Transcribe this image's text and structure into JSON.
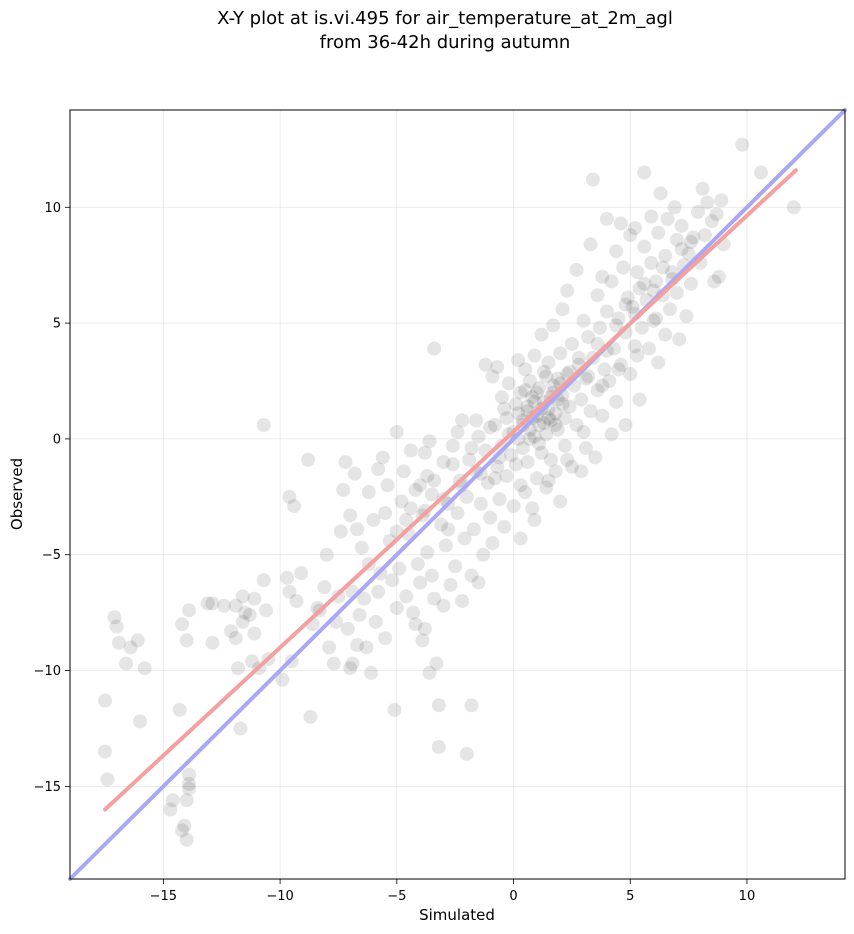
{
  "chart_data": {
    "type": "scatter",
    "title": "X-Y plot at is.vi.495 for air_temperature_at_2m_agl",
    "subtitle": "from 36-42h during autumn",
    "xlabel": "Simulated",
    "ylabel": "Observed",
    "xlim": [
      -19.0,
      14.2
    ],
    "ylim": [
      -19.0,
      14.2
    ],
    "xticks": [
      -15,
      -10,
      -5,
      0,
      5,
      10
    ],
    "yticks": [
      -15,
      -10,
      -5,
      0,
      5,
      10
    ],
    "xtick_labels": [
      "−15",
      "−10",
      "−5",
      "0",
      "5",
      "10"
    ],
    "ytick_labels": [
      "−15",
      "−10",
      "−5",
      "0",
      "5",
      "10"
    ],
    "grid": true,
    "colors": {
      "points": "#000000",
      "fit_line": "#f4a0a0",
      "identity_line": "#a8a8f4"
    },
    "identity_line": {
      "x": [
        -19.0,
        14.2
      ],
      "y": [
        -19.0,
        14.2
      ]
    },
    "fit_line": {
      "x": [
        -17.5,
        12.1
      ],
      "y": [
        -16.0,
        11.6
      ]
    },
    "points": [
      [
        -17.5,
        -11.3
      ],
      [
        -17.5,
        -13.5
      ],
      [
        -17.4,
        -14.7
      ],
      [
        -17.1,
        -7.7
      ],
      [
        -17.0,
        -8.1
      ],
      [
        -16.9,
        -8.8
      ],
      [
        -16.6,
        -9.7
      ],
      [
        -16.4,
        -9.0
      ],
      [
        -16.1,
        -8.7
      ],
      [
        -16.0,
        -12.2
      ],
      [
        -15.8,
        -9.9
      ],
      [
        -14.7,
        -16.0
      ],
      [
        -14.6,
        -15.6
      ],
      [
        -14.3,
        -11.7
      ],
      [
        -14.2,
        -16.9
      ],
      [
        -14.2,
        -8.0
      ],
      [
        -14.1,
        -16.7
      ],
      [
        -14.0,
        -17.3
      ],
      [
        -14.0,
        -15.6
      ],
      [
        -13.9,
        -15.1
      ],
      [
        -13.9,
        -14.9
      ],
      [
        -13.9,
        -14.5
      ],
      [
        -14.0,
        -8.7
      ],
      [
        -13.9,
        -7.4
      ],
      [
        -13.1,
        -7.1
      ],
      [
        -12.9,
        -7.1
      ],
      [
        -12.9,
        -8.8
      ],
      [
        -12.4,
        -7.2
      ],
      [
        -12.1,
        -8.3
      ],
      [
        -11.9,
        -8.6
      ],
      [
        -11.9,
        -7.2
      ],
      [
        -11.8,
        -9.9
      ],
      [
        -11.7,
        -12.5
      ],
      [
        -11.6,
        -6.8
      ],
      [
        -11.6,
        -7.9
      ],
      [
        -11.5,
        -7.5
      ],
      [
        -11.3,
        -7.6
      ],
      [
        -11.2,
        -9.6
      ],
      [
        -11.1,
        -8.4
      ],
      [
        -11.1,
        -6.9
      ],
      [
        -10.9,
        -9.9
      ],
      [
        -10.7,
        -6.1
      ],
      [
        -10.6,
        -7.4
      ],
      [
        -10.5,
        -9.5
      ],
      [
        -10.7,
        0.6
      ],
      [
        -9.9,
        -10.4
      ],
      [
        -9.7,
        -6.0
      ],
      [
        -9.6,
        -6.6
      ],
      [
        -9.5,
        -9.6
      ],
      [
        -9.6,
        -2.5
      ],
      [
        -9.4,
        -2.9
      ],
      [
        -9.3,
        -7.0
      ],
      [
        -9.1,
        -5.8
      ],
      [
        -8.8,
        -0.9
      ],
      [
        -8.7,
        -12.0
      ],
      [
        -8.6,
        -8.0
      ],
      [
        -8.4,
        -7.3
      ],
      [
        -8.3,
        -7.4
      ],
      [
        -8.1,
        -6.4
      ],
      [
        -8.0,
        -5.0
      ],
      [
        -7.9,
        -9.0
      ],
      [
        -7.7,
        -9.7
      ],
      [
        -7.6,
        -7.9
      ],
      [
        -7.5,
        -6.8
      ],
      [
        -7.4,
        -4.0
      ],
      [
        -7.3,
        -2.2
      ],
      [
        -7.2,
        -1.0
      ],
      [
        -7.1,
        -8.2
      ],
      [
        -7.0,
        -9.9
      ],
      [
        -7.0,
        -3.3
      ],
      [
        -6.9,
        -9.7
      ],
      [
        -6.9,
        -6.6
      ],
      [
        -6.8,
        -1.5
      ],
      [
        -6.7,
        -8.9
      ],
      [
        -6.7,
        -3.9
      ],
      [
        -6.6,
        -7.6
      ],
      [
        -6.5,
        -4.7
      ],
      [
        -6.4,
        -6.9
      ],
      [
        -6.3,
        -9.0
      ],
      [
        -6.2,
        -5.4
      ],
      [
        -6.2,
        -2.3
      ],
      [
        -6.1,
        -10.1
      ],
      [
        -6.0,
        -3.5
      ],
      [
        -5.9,
        -7.9
      ],
      [
        -5.8,
        -6.6
      ],
      [
        -5.8,
        -1.3
      ],
      [
        -5.7,
        -5.8
      ],
      [
        -5.6,
        -0.8
      ],
      [
        -5.5,
        -8.6
      ],
      [
        -5.5,
        -3.2
      ],
      [
        -5.4,
        -2.0
      ],
      [
        -5.3,
        -4.4
      ],
      [
        -5.2,
        -6.1
      ],
      [
        -5.1,
        -11.7
      ],
      [
        -5.0,
        0.3
      ],
      [
        -5.0,
        -7.3
      ],
      [
        -4.9,
        -5.6
      ],
      [
        -4.8,
        -2.7
      ],
      [
        -4.7,
        -1.4
      ],
      [
        -4.6,
        -6.8
      ],
      [
        -4.5,
        -4.1
      ],
      [
        -4.4,
        -3.0
      ],
      [
        -4.4,
        -0.5
      ],
      [
        -4.3,
        -7.5
      ],
      [
        -4.2,
        -8.0
      ],
      [
        -4.1,
        -5.4
      ],
      [
        -4.0,
        -2.0
      ],
      [
        -4.0,
        -6.2
      ],
      [
        -3.9,
        -8.7
      ],
      [
        -3.9,
        -3.3
      ],
      [
        -3.8,
        -8.2
      ],
      [
        -3.8,
        -0.6
      ],
      [
        -3.7,
        -1.6
      ],
      [
        -3.7,
        -4.9
      ],
      [
        -3.6,
        -10.1
      ],
      [
        -3.5,
        -2.4
      ],
      [
        -3.5,
        -5.9
      ],
      [
        -3.4,
        3.9
      ],
      [
        -3.4,
        -6.9
      ],
      [
        -3.3,
        -9.7
      ],
      [
        -3.2,
        -11.5
      ],
      [
        -3.2,
        -13.3
      ],
      [
        -3.1,
        -3.7
      ],
      [
        -3.0,
        -7.2
      ],
      [
        -3.0,
        -1.0
      ],
      [
        -2.9,
        -4.6
      ],
      [
        -2.8,
        -2.8
      ],
      [
        -2.7,
        -6.3
      ],
      [
        -2.6,
        -0.3
      ],
      [
        -2.5,
        -5.5
      ],
      [
        -2.4,
        -3.2
      ],
      [
        -2.3,
        -1.8
      ],
      [
        -2.2,
        -7.0
      ],
      [
        -2.2,
        0.8
      ],
      [
        -2.1,
        -4.3
      ],
      [
        -2.0,
        -13.6
      ],
      [
        -2.0,
        -2.5
      ],
      [
        -1.9,
        -0.9
      ],
      [
        -1.8,
        -5.9
      ],
      [
        -1.8,
        -11.5
      ],
      [
        -1.7,
        -3.9
      ],
      [
        -1.6,
        -1.4
      ],
      [
        -1.5,
        0.1
      ],
      [
        -1.5,
        -6.2
      ],
      [
        -1.4,
        -2.8
      ],
      [
        -1.3,
        -5.0
      ],
      [
        -1.2,
        -0.5
      ],
      [
        -1.2,
        3.2
      ],
      [
        -1.1,
        -1.9
      ],
      [
        -1.0,
        -3.4
      ],
      [
        -0.9,
        2.7
      ],
      [
        -0.9,
        -4.5
      ],
      [
        -0.8,
        0.6
      ],
      [
        -0.7,
        -1.2
      ],
      [
        -0.7,
        3.1
      ],
      [
        -0.6,
        -2.6
      ],
      [
        -0.5,
        -0.3
      ],
      [
        -0.5,
        1.8
      ],
      [
        -0.4,
        -3.8
      ],
      [
        -0.3,
        0.9
      ],
      [
        -0.3,
        -1.6
      ],
      [
        -0.2,
        2.4
      ],
      [
        -0.1,
        -0.7
      ],
      [
        0.0,
        0.3
      ],
      [
        0.0,
        -2.9
      ],
      [
        0.1,
        1.5
      ],
      [
        0.1,
        -1.1
      ],
      [
        0.2,
        3.4
      ],
      [
        0.2,
        0.0
      ],
      [
        0.3,
        -4.3
      ],
      [
        0.3,
        2.0
      ],
      [
        0.4,
        -0.4
      ],
      [
        0.4,
        0.8
      ],
      [
        0.5,
        -2.3
      ],
      [
        0.5,
        3.0
      ],
      [
        0.6,
        1.2
      ],
      [
        0.6,
        -1.0
      ],
      [
        0.7,
        0.4
      ],
      [
        0.7,
        2.5
      ],
      [
        0.8,
        -3.0
      ],
      [
        0.8,
        1.8
      ],
      [
        0.9,
        0.1
      ],
      [
        0.9,
        3.6
      ],
      [
        1.0,
        1.0
      ],
      [
        1.0,
        -1.7
      ],
      [
        1.1,
        2.2
      ],
      [
        1.1,
        0.6
      ],
      [
        1.2,
        -0.6
      ],
      [
        1.2,
        4.5
      ],
      [
        1.3,
        1.6
      ],
      [
        1.3,
        2.9
      ],
      [
        1.4,
        0.2
      ],
      [
        1.4,
        -2.1
      ],
      [
        1.5,
        1.3
      ],
      [
        1.5,
        3.3
      ],
      [
        1.6,
        0.8
      ],
      [
        1.6,
        -0.9
      ],
      [
        1.7,
        2.0
      ],
      [
        1.7,
        4.9
      ],
      [
        1.8,
        1.1
      ],
      [
        1.8,
        -1.4
      ],
      [
        1.9,
        2.6
      ],
      [
        1.9,
        0.4
      ],
      [
        2.0,
        3.7
      ],
      [
        2.0,
        -2.7
      ],
      [
        2.1,
        1.9
      ],
      [
        2.1,
        5.6
      ],
      [
        2.2,
        0.9
      ],
      [
        2.2,
        -0.3
      ],
      [
        2.3,
        2.8
      ],
      [
        2.3,
        6.4
      ],
      [
        2.4,
        1.4
      ],
      [
        2.5,
        4.1
      ],
      [
        2.5,
        -1.2
      ],
      [
        2.6,
        2.3
      ],
      [
        2.7,
        0.6
      ],
      [
        2.7,
        7.3
      ],
      [
        2.8,
        3.2
      ],
      [
        2.9,
        -1.4
      ],
      [
        2.9,
        1.7
      ],
      [
        3.0,
        5.1
      ],
      [
        3.1,
        2.6
      ],
      [
        3.1,
        -0.4
      ],
      [
        3.2,
        4.4
      ],
      [
        3.3,
        1.2
      ],
      [
        3.3,
        8.4
      ],
      [
        3.4,
        11.2
      ],
      [
        3.4,
        3.5
      ],
      [
        3.5,
        -0.8
      ],
      [
        3.6,
        6.2
      ],
      [
        3.6,
        2.1
      ],
      [
        3.7,
        4.8
      ],
      [
        3.8,
        1.0
      ],
      [
        3.8,
        7.0
      ],
      [
        3.9,
        3.0
      ],
      [
        4.0,
        9.5
      ],
      [
        4.0,
        5.5
      ],
      [
        4.1,
        2.5
      ],
      [
        4.2,
        0.2
      ],
      [
        4.2,
        6.8
      ],
      [
        4.3,
        3.9
      ],
      [
        4.4,
        8.1
      ],
      [
        4.4,
        1.6
      ],
      [
        4.5,
        5.2
      ],
      [
        4.6,
        9.3
      ],
      [
        4.6,
        3.2
      ],
      [
        4.7,
        7.4
      ],
      [
        4.8,
        0.6
      ],
      [
        4.8,
        4.6
      ],
      [
        4.9,
        6.1
      ],
      [
        5.0,
        8.8
      ],
      [
        5.0,
        2.8
      ],
      [
        5.1,
        5.7
      ],
      [
        5.2,
        4.0
      ],
      [
        5.2,
        9.1
      ],
      [
        5.3,
        7.2
      ],
      [
        5.4,
        1.7
      ],
      [
        5.4,
        6.5
      ],
      [
        5.5,
        4.8
      ],
      [
        5.6,
        8.3
      ],
      [
        5.6,
        11.5
      ],
      [
        5.7,
        6.0
      ],
      [
        5.8,
        3.9
      ],
      [
        5.9,
        9.6
      ],
      [
        5.9,
        7.6
      ],
      [
        6.0,
        5.1
      ],
      [
        6.1,
        6.8
      ],
      [
        6.2,
        3.3
      ],
      [
        6.2,
        8.9
      ],
      [
        6.3,
        10.6
      ],
      [
        6.4,
        6.2
      ],
      [
        6.5,
        4.5
      ],
      [
        6.5,
        7.9
      ],
      [
        6.6,
        9.5
      ],
      [
        6.7,
        5.6
      ],
      [
        6.8,
        7.2
      ],
      [
        6.9,
        10.0
      ],
      [
        7.0,
        8.6
      ],
      [
        7.0,
        6.3
      ],
      [
        7.1,
        4.3
      ],
      [
        7.2,
        9.2
      ],
      [
        7.3,
        7.5
      ],
      [
        7.4,
        5.3
      ],
      [
        7.5,
        8.0
      ],
      [
        7.6,
        6.7
      ],
      [
        7.7,
        8.7
      ],
      [
        7.9,
        9.8
      ],
      [
        8.0,
        7.6
      ],
      [
        8.1,
        10.8
      ],
      [
        8.2,
        8.8
      ],
      [
        8.3,
        10.2
      ],
      [
        8.5,
        9.4
      ],
      [
        8.6,
        6.8
      ],
      [
        8.7,
        9.7
      ],
      [
        8.8,
        7.0
      ],
      [
        8.9,
        10.3
      ],
      [
        9.0,
        8.4
      ],
      [
        9.8,
        12.7
      ],
      [
        10.6,
        11.5
      ],
      [
        12.0,
        10.0
      ],
      [
        0.4,
        0.6
      ],
      [
        0.6,
        1.4
      ],
      [
        0.8,
        0.9
      ],
      [
        1.0,
        2.0
      ],
      [
        1.2,
        1.3
      ],
      [
        1.4,
        2.7
      ],
      [
        1.6,
        1.8
      ],
      [
        1.8,
        0.6
      ],
      [
        2.0,
        2.4
      ],
      [
        0.2,
        1.1
      ],
      [
        0.5,
        2.1
      ],
      [
        0.9,
        1.6
      ],
      [
        1.3,
        0.7
      ],
      [
        1.7,
        2.3
      ],
      [
        2.1,
        1.5
      ],
      [
        0.7,
        0.0
      ],
      [
        1.1,
        -0.2
      ],
      [
        1.5,
        0.9
      ],
      [
        1.9,
        1.7
      ],
      [
        -0.2,
        0.2
      ],
      [
        -0.6,
        -0.8
      ],
      [
        -1.0,
        0.5
      ],
      [
        -1.4,
        -1.5
      ],
      [
        -1.8,
        -0.4
      ],
      [
        -2.2,
        -2.0
      ],
      [
        -2.6,
        -1.1
      ],
      [
        -3.0,
        -2.6
      ],
      [
        -3.4,
        -1.8
      ],
      [
        -3.8,
        -3.1
      ],
      [
        -4.2,
        -2.2
      ],
      [
        -4.6,
        -3.5
      ],
      [
        -5.0,
        -4.0
      ],
      [
        2.4,
        2.9
      ],
      [
        2.8,
        3.5
      ],
      [
        3.2,
        2.7
      ],
      [
        3.6,
        4.1
      ],
      [
        4.0,
        3.8
      ],
      [
        4.4,
        4.9
      ],
      [
        4.8,
        5.8
      ],
      [
        5.2,
        5.4
      ],
      [
        5.6,
        6.7
      ],
      [
        6.0,
        6.4
      ],
      [
        6.4,
        7.4
      ],
      [
        6.8,
        6.9
      ],
      [
        7.2,
        8.2
      ],
      [
        7.6,
        8.5
      ],
      [
        -0.4,
        1.3
      ],
      [
        -0.8,
        -1.7
      ],
      [
        -1.6,
        0.8
      ],
      [
        -2.4,
        0.3
      ],
      [
        -2.8,
        -3.9
      ],
      [
        -3.6,
        -0.1
      ],
      [
        0.3,
        -2.0
      ],
      [
        0.9,
        -3.5
      ],
      [
        1.5,
        -1.8
      ],
      [
        2.3,
        -0.9
      ],
      [
        3.0,
        0.3
      ],
      [
        3.8,
        2.3
      ],
      [
        4.5,
        3.0
      ],
      [
        5.3,
        3.6
      ],
      [
        6.1,
        5.2
      ]
    ]
  }
}
